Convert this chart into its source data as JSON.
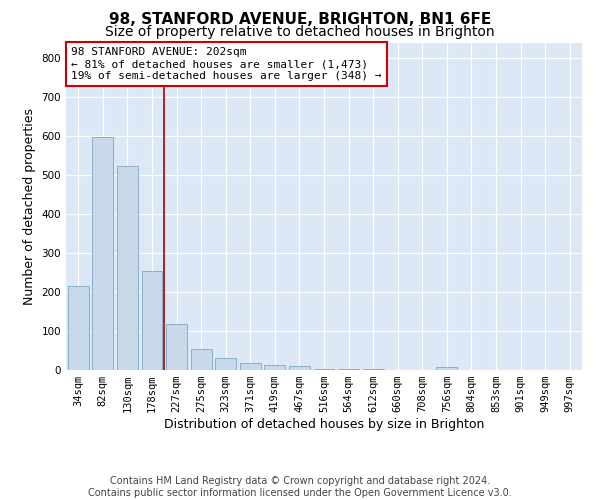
{
  "title1": "98, STANFORD AVENUE, BRIGHTON, BN1 6FE",
  "title2": "Size of property relative to detached houses in Brighton",
  "xlabel": "Distribution of detached houses by size in Brighton",
  "ylabel": "Number of detached properties",
  "categories": [
    "34sqm",
    "82sqm",
    "130sqm",
    "178sqm",
    "227sqm",
    "275sqm",
    "323sqm",
    "371sqm",
    "419sqm",
    "467sqm",
    "516sqm",
    "564sqm",
    "612sqm",
    "660sqm",
    "708sqm",
    "756sqm",
    "804sqm",
    "853sqm",
    "901sqm",
    "949sqm",
    "997sqm"
  ],
  "values": [
    215,
    597,
    524,
    255,
    117,
    53,
    31,
    18,
    14,
    9,
    3,
    2,
    2,
    0,
    0,
    8,
    0,
    0,
    0,
    0,
    0
  ],
  "bar_color": "#c8d9ea",
  "bar_edge_color": "#8aafc8",
  "reference_line_index": 3.5,
  "reference_line_color": "#aa0000",
  "annotation_line1": "98 STANFORD AVENUE: 202sqm",
  "annotation_line2": "← 81% of detached houses are smaller (1,473)",
  "annotation_line3": "19% of semi-detached houses are larger (348) →",
  "annotation_box_facecolor": "#ffffff",
  "annotation_box_edgecolor": "#cc0000",
  "ylim": [
    0,
    840
  ],
  "yticks": [
    0,
    100,
    200,
    300,
    400,
    500,
    600,
    700,
    800
  ],
  "footer_text": "Contains HM Land Registry data © Crown copyright and database right 2024.\nContains public sector information licensed under the Open Government Licence v3.0.",
  "bg_color": "#ffffff",
  "plot_bg_color": "#dce8f5",
  "grid_color": "#ffffff",
  "title1_fontsize": 11,
  "title2_fontsize": 10,
  "axis_label_fontsize": 9,
  "tick_fontsize": 7.5,
  "annotation_fontsize": 8,
  "footer_fontsize": 7
}
